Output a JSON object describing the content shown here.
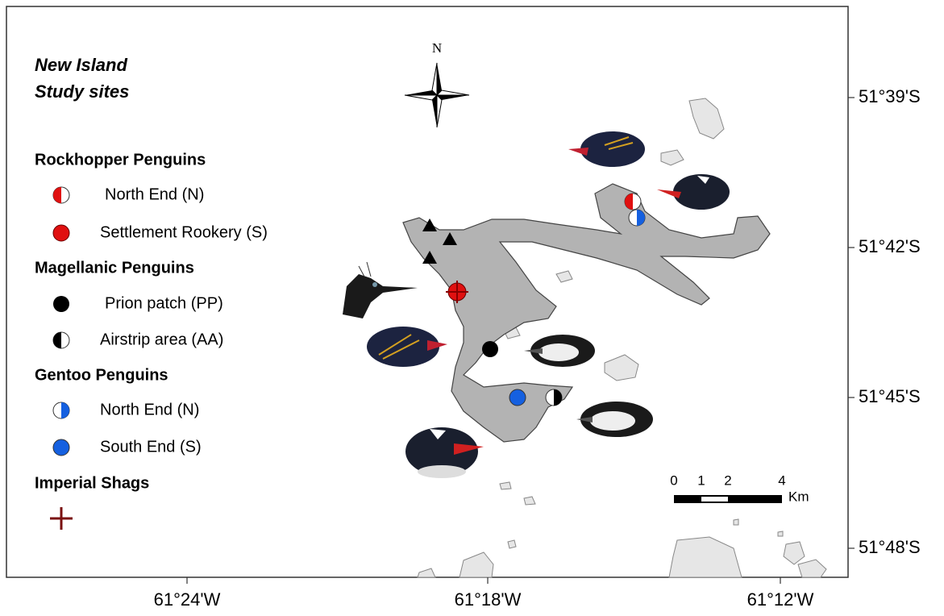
{
  "header": {
    "title_line1": "New Island",
    "title_line2": "Study sites"
  },
  "compass": "N",
  "legend": [
    {
      "title": "Rockhopper Penguins",
      "items": [
        "North End (N)",
        "Settlement Rookery (S)"
      ]
    },
    {
      "title": "Magellanic Penguins",
      "items": [
        "Prion patch (PP)",
        "Airstrip area (AA)"
      ]
    },
    {
      "title": "Gentoo Penguins",
      "items": [
        "North End (N)",
        "South End (S)"
      ]
    },
    {
      "title": "Imperial Shags"
    }
  ],
  "latitude_labels": [
    "51°39'S",
    "51°42'S",
    "51°45'S",
    "51°48'S"
  ],
  "longitude_labels": [
    "61°24'W",
    "61°18'W",
    "61°12'W"
  ],
  "scale_bar": {
    "ticks": [
      0,
      1,
      2,
      4
    ],
    "unit": "Km"
  }
}
